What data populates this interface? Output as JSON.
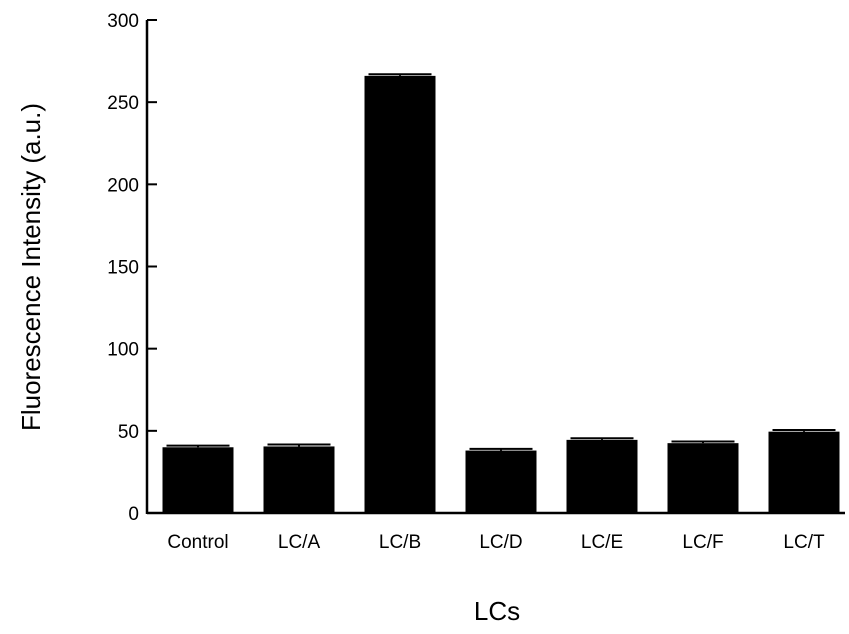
{
  "chart_data": {
    "type": "bar",
    "title": "",
    "xlabel": "LCs",
    "ylabel": "Fluorescence Intensity (a.u.)",
    "ylim": [
      0,
      300
    ],
    "yticks": [
      0,
      50,
      100,
      150,
      200,
      250,
      300
    ],
    "categories": [
      "Control",
      "LC/A",
      "LC/B",
      "LC/D",
      "LC/E",
      "LC/F",
      "LC/T"
    ],
    "values": [
      40,
      40.5,
      266,
      38,
      44.5,
      42.5,
      49.5
    ],
    "errors": [
      1,
      1.2,
      1,
      1,
      1,
      1,
      1
    ],
    "bar_color": "#000000",
    "grid": false,
    "legend": false
  }
}
